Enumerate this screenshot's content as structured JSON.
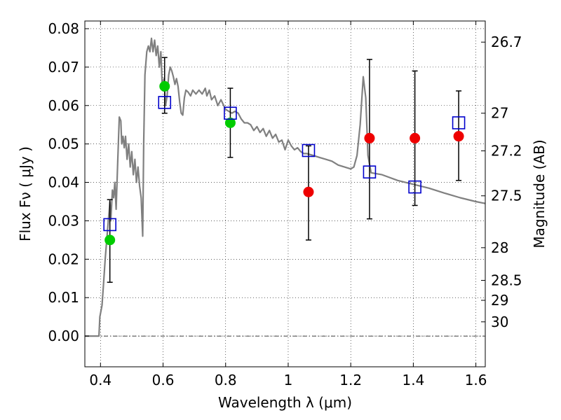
{
  "chart_data": {
    "type": "scatter",
    "xlabel": "Wavelength  λ (μm)",
    "ylabel": "Flux  Fν  ( μJy )",
    "y2label": "Magnitude (AB)",
    "xlim": [
      0.35,
      1.63
    ],
    "ylim": [
      -0.008,
      0.082
    ],
    "x_ticks": [
      0.4,
      0.6,
      0.8,
      1.0,
      1.2,
      1.4,
      1.6
    ],
    "x_tick_labels": [
      "0.4",
      "0.6",
      "0.8",
      "1",
      "1.2",
      "1.4",
      "1.6"
    ],
    "y_ticks": [
      0.0,
      0.01,
      0.02,
      0.03,
      0.04,
      0.05,
      0.06,
      0.07,
      0.08
    ],
    "y_tick_labels": [
      "0.00",
      "0.01",
      "0.02",
      "0.03",
      "0.04",
      "0.05",
      "0.06",
      "0.07",
      "0.08"
    ],
    "mag_ticks": [
      {
        "label": "26.7",
        "flux": 0.0765
      },
      {
        "label": "27",
        "flux": 0.058
      },
      {
        "label": "27.2",
        "flux": 0.0482
      },
      {
        "label": "27.5",
        "flux": 0.0365
      },
      {
        "label": "28",
        "flux": 0.023
      },
      {
        "label": "28.5",
        "flux": 0.0145
      },
      {
        "label": "29",
        "flux": 0.0093
      },
      {
        "label": "30",
        "flux": 0.0037
      }
    ],
    "grid": true,
    "colors": {
      "sed": "#808080",
      "green": "#00cc00",
      "red": "#ee0000",
      "model": "#0000cc",
      "errorbar": "#000000"
    },
    "series": [
      {
        "kind": "line",
        "points": [
          [
            0.35,
            0.0
          ],
          [
            0.395,
            0.0
          ],
          [
            0.398,
            0.005
          ],
          [
            0.405,
            0.008
          ],
          [
            0.41,
            0.014
          ],
          [
            0.415,
            0.02
          ],
          [
            0.42,
            0.025
          ],
          [
            0.425,
            0.03
          ],
          [
            0.43,
            0.035
          ],
          [
            0.433,
            0.03
          ],
          [
            0.438,
            0.038
          ],
          [
            0.442,
            0.036
          ],
          [
            0.446,
            0.04
          ],
          [
            0.45,
            0.033
          ],
          [
            0.455,
            0.045
          ],
          [
            0.46,
            0.057
          ],
          [
            0.465,
            0.056
          ],
          [
            0.468,
            0.05
          ],
          [
            0.472,
            0.052
          ],
          [
            0.476,
            0.049
          ],
          [
            0.48,
            0.052
          ],
          [
            0.485,
            0.046
          ],
          [
            0.49,
            0.05
          ],
          [
            0.495,
            0.044
          ],
          [
            0.5,
            0.048
          ],
          [
            0.505,
            0.042
          ],
          [
            0.51,
            0.046
          ],
          [
            0.515,
            0.04
          ],
          [
            0.52,
            0.044
          ],
          [
            0.525,
            0.039
          ],
          [
            0.53,
            0.036
          ],
          [
            0.535,
            0.026
          ],
          [
            0.538,
            0.05
          ],
          [
            0.542,
            0.068
          ],
          [
            0.548,
            0.074
          ],
          [
            0.553,
            0.0755
          ],
          [
            0.558,
            0.074
          ],
          [
            0.563,
            0.0775
          ],
          [
            0.568,
            0.074
          ],
          [
            0.573,
            0.077
          ],
          [
            0.578,
            0.073
          ],
          [
            0.583,
            0.0755
          ],
          [
            0.588,
            0.07
          ],
          [
            0.593,
            0.074
          ],
          [
            0.598,
            0.064
          ],
          [
            0.603,
            0.067
          ],
          [
            0.608,
            0.06
          ],
          [
            0.613,
            0.0625
          ],
          [
            0.618,
            0.068
          ],
          [
            0.623,
            0.07
          ],
          [
            0.628,
            0.069
          ],
          [
            0.633,
            0.0675
          ],
          [
            0.638,
            0.0655
          ],
          [
            0.643,
            0.067
          ],
          [
            0.648,
            0.065
          ],
          [
            0.653,
            0.061
          ],
          [
            0.658,
            0.058
          ],
          [
            0.663,
            0.0575
          ],
          [
            0.668,
            0.062
          ],
          [
            0.673,
            0.064
          ],
          [
            0.68,
            0.0635
          ],
          [
            0.688,
            0.0625
          ],
          [
            0.695,
            0.064
          ],
          [
            0.705,
            0.063
          ],
          [
            0.715,
            0.064
          ],
          [
            0.725,
            0.063
          ],
          [
            0.735,
            0.0645
          ],
          [
            0.74,
            0.0625
          ],
          [
            0.748,
            0.064
          ],
          [
            0.755,
            0.0615
          ],
          [
            0.765,
            0.0625
          ],
          [
            0.775,
            0.06
          ],
          [
            0.785,
            0.0615
          ],
          [
            0.8,
            0.059
          ],
          [
            0.81,
            0.0585
          ],
          [
            0.82,
            0.058
          ],
          [
            0.83,
            0.0585
          ],
          [
            0.84,
            0.058
          ],
          [
            0.85,
            0.0565
          ],
          [
            0.86,
            0.0555
          ],
          [
            0.87,
            0.0555
          ],
          [
            0.88,
            0.055
          ],
          [
            0.89,
            0.0535
          ],
          [
            0.9,
            0.0545
          ],
          [
            0.91,
            0.053
          ],
          [
            0.92,
            0.054
          ],
          [
            0.93,
            0.052
          ],
          [
            0.94,
            0.0535
          ],
          [
            0.95,
            0.0515
          ],
          [
            0.96,
            0.0525
          ],
          [
            0.97,
            0.0505
          ],
          [
            0.98,
            0.051
          ],
          [
            0.99,
            0.0485
          ],
          [
            1.0,
            0.051
          ],
          [
            1.01,
            0.0495
          ],
          [
            1.02,
            0.0485
          ],
          [
            1.03,
            0.049
          ],
          [
            1.04,
            0.048
          ],
          [
            1.05,
            0.0475
          ],
          [
            1.06,
            0.0475
          ],
          [
            1.08,
            0.047
          ],
          [
            1.1,
            0.0465
          ],
          [
            1.12,
            0.046
          ],
          [
            1.14,
            0.0455
          ],
          [
            1.16,
            0.0445
          ],
          [
            1.18,
            0.044
          ],
          [
            1.2,
            0.0435
          ],
          [
            1.21,
            0.044
          ],
          [
            1.22,
            0.047
          ],
          [
            1.23,
            0.055
          ],
          [
            1.24,
            0.0675
          ],
          [
            1.248,
            0.062
          ],
          [
            1.255,
            0.047
          ],
          [
            1.265,
            0.0425
          ],
          [
            1.3,
            0.042
          ],
          [
            1.35,
            0.0405
          ],
          [
            1.4,
            0.0395
          ],
          [
            1.45,
            0.0385
          ],
          [
            1.5,
            0.0372
          ],
          [
            1.55,
            0.036
          ],
          [
            1.6,
            0.035
          ],
          [
            1.63,
            0.0345
          ]
        ]
      },
      {
        "kind": "errorbar",
        "points": [
          {
            "x": 0.43,
            "lo": 0.014,
            "hi": 0.0355
          },
          {
            "x": 0.605,
            "lo": 0.058,
            "hi": 0.0725
          },
          {
            "x": 0.815,
            "lo": 0.0465,
            "hi": 0.0645
          },
          {
            "x": 1.065,
            "lo": 0.025,
            "hi": 0.0495
          },
          {
            "x": 1.26,
            "lo": 0.0305,
            "hi": 0.072
          },
          {
            "x": 1.405,
            "lo": 0.034,
            "hi": 0.069
          },
          {
            "x": 1.545,
            "lo": 0.0405,
            "hi": 0.0638
          }
        ]
      },
      {
        "kind": "marker-green",
        "points": [
          [
            0.43,
            0.025
          ],
          [
            0.605,
            0.065
          ],
          [
            0.815,
            0.0555
          ]
        ]
      },
      {
        "kind": "marker-red",
        "points": [
          [
            1.065,
            0.0375
          ],
          [
            1.26,
            0.0515
          ],
          [
            1.405,
            0.0515
          ],
          [
            1.545,
            0.052
          ]
        ]
      },
      {
        "kind": "marker-square",
        "points": [
          [
            0.43,
            0.029
          ],
          [
            0.605,
            0.0608
          ],
          [
            0.815,
            0.058
          ],
          [
            1.065,
            0.0483
          ],
          [
            1.26,
            0.0427
          ],
          [
            1.405,
            0.0388
          ],
          [
            1.545,
            0.0555
          ]
        ]
      }
    ]
  }
}
